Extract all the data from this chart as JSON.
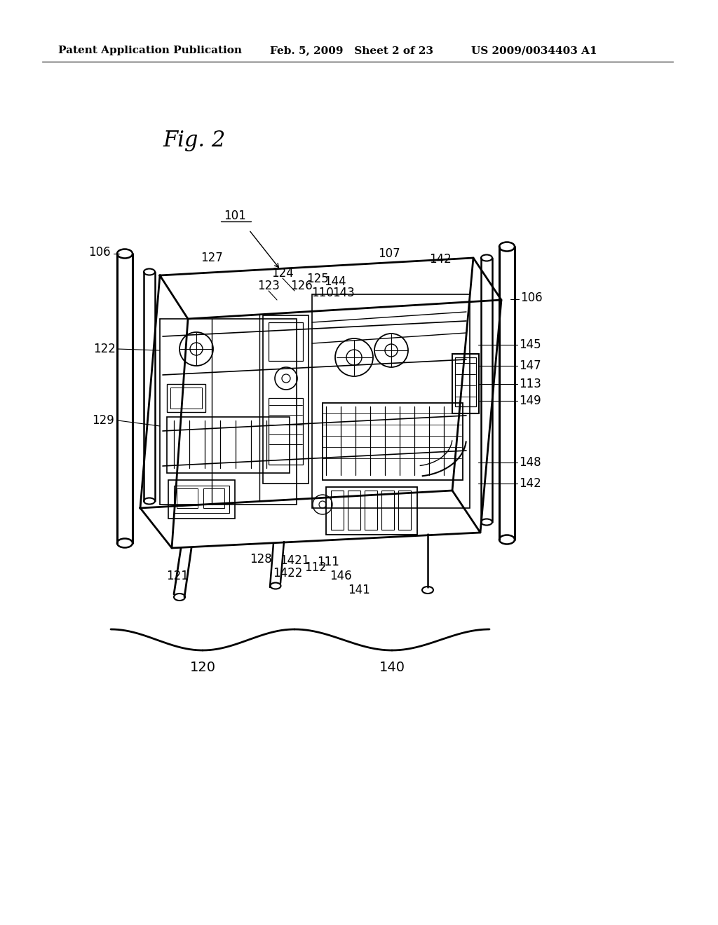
{
  "background_color": "#ffffff",
  "header_left": "Patent Application Publication",
  "header_center": "Feb. 5, 2009   Sheet 2 of 23",
  "header_right": "US 2009/0034403 A1",
  "fig_label": "Fig. 2",
  "ref_101": "101",
  "ref_106_left": "106",
  "ref_106_right": "106",
  "ref_107": "107",
  "ref_110": "110",
  "ref_111": "111",
  "ref_112": "112",
  "ref_113": "113",
  "ref_121": "121",
  "ref_122": "122",
  "ref_123": "123",
  "ref_124": "124",
  "ref_125": "125",
  "ref_126": "126",
  "ref_127": "127",
  "ref_128": "128",
  "ref_129": "129",
  "ref_141": "141",
  "ref_142a": "142",
  "ref_142b": "142",
  "ref_143": "143",
  "ref_144": "144",
  "ref_145": "145",
  "ref_146": "146",
  "ref_147": "147",
  "ref_148": "148",
  "ref_149": "149",
  "ref_1421": "1421",
  "ref_1422": "1422",
  "bracket_label_120": "120",
  "bracket_label_140": "140",
  "text_color": "#000000",
  "line_color": "#000000"
}
